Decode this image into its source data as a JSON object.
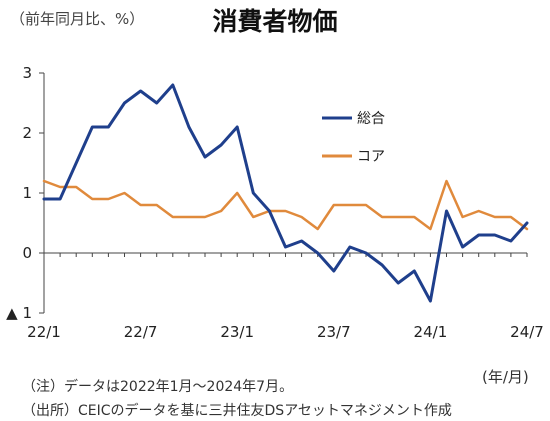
{
  "header": {
    "unit_label": "（前年同月比、%）",
    "title": "消費者物価",
    "x_unit": "(年/月)"
  },
  "notes": {
    "note": "（注）データは2022年1月～2024年7月。",
    "source": "（出所）CEICのデータを基に三井住友DSアセットマネジメント作成"
  },
  "chart_data": {
    "type": "line",
    "x": [
      "22/1",
      "22/2",
      "22/3",
      "22/4",
      "22/5",
      "22/6",
      "22/7",
      "22/8",
      "22/9",
      "22/10",
      "22/11",
      "22/12",
      "23/1",
      "23/2",
      "23/3",
      "23/4",
      "23/5",
      "23/6",
      "23/7",
      "23/8",
      "23/9",
      "23/10",
      "23/11",
      "23/12",
      "24/1",
      "24/2",
      "24/3",
      "24/4",
      "24/5",
      "24/6",
      "24/7"
    ],
    "x_tick_labels": [
      "22/1",
      "22/7",
      "23/1",
      "23/7",
      "24/1",
      "24/7"
    ],
    "x_tick_indices": [
      0,
      6,
      12,
      18,
      24,
      30
    ],
    "y_ticks": [
      3,
      2,
      1,
      0,
      -1
    ],
    "y_tick_labels": [
      "3",
      "2",
      "1",
      "0",
      "▲ 1"
    ],
    "ylim": [
      -1,
      3
    ],
    "grid": false,
    "legend_position": "top-right",
    "series": [
      {
        "name": "総合",
        "color": "#1f3f8c",
        "values": [
          0.9,
          0.9,
          1.5,
          2.1,
          2.1,
          2.5,
          2.7,
          2.5,
          2.8,
          2.1,
          1.6,
          1.8,
          2.1,
          1.0,
          0.7,
          0.1,
          0.2,
          0.0,
          -0.3,
          0.1,
          0.0,
          -0.2,
          -0.5,
          -0.3,
          -0.8,
          0.7,
          0.1,
          0.3,
          0.3,
          0.2,
          0.5
        ]
      },
      {
        "name": "コア",
        "color": "#e08a3c",
        "values": [
          1.2,
          1.1,
          1.1,
          0.9,
          0.9,
          1.0,
          0.8,
          0.8,
          0.6,
          0.6,
          0.6,
          0.7,
          1.0,
          0.6,
          0.7,
          0.7,
          0.6,
          0.4,
          0.8,
          0.8,
          0.8,
          0.6,
          0.6,
          0.6,
          0.4,
          1.2,
          0.6,
          0.7,
          0.6,
          0.6,
          0.4
        ]
      }
    ]
  }
}
